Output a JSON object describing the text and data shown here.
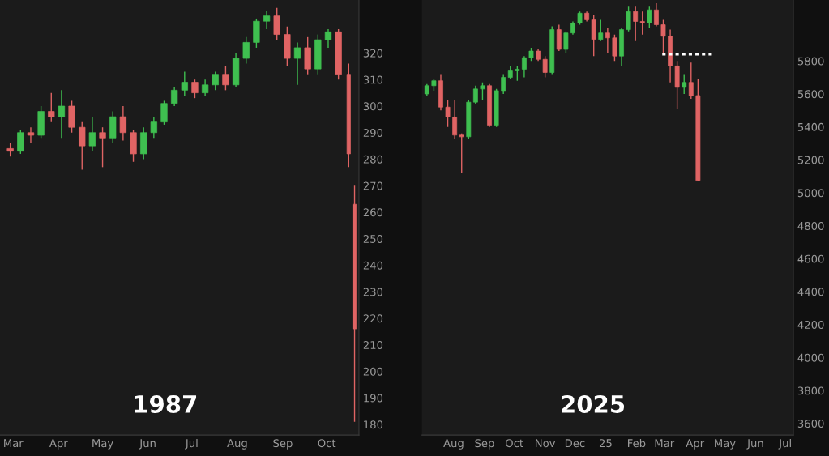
{
  "chart_data": [
    {
      "type": "candlestick",
      "x": [
        "1987-02-27",
        "1987-03-06",
        "1987-03-13",
        "1987-03-20",
        "1987-03-27",
        "1987-04-03",
        "1987-04-10",
        "1987-04-17",
        "1987-04-24",
        "1987-05-01",
        "1987-05-08",
        "1987-05-15",
        "1987-05-22",
        "1987-05-29",
        "1987-06-05",
        "1987-06-12",
        "1987-06-19",
        "1987-06-26",
        "1987-07-03",
        "1987-07-10",
        "1987-07-17",
        "1987-07-24",
        "1987-07-31",
        "1987-08-07",
        "1987-08-14",
        "1987-08-21",
        "1987-08-28",
        "1987-09-04",
        "1987-09-11",
        "1987-09-18",
        "1987-09-25",
        "1987-10-02",
        "1987-10-09",
        "1987-10-16",
        "1987-10-20"
      ],
      "ohlc": [
        [
          284,
          286,
          281,
          283
        ],
        [
          283,
          291,
          282,
          290
        ],
        [
          290,
          292,
          286,
          289
        ],
        [
          289,
          300,
          288,
          298
        ],
        [
          298,
          305,
          294,
          296
        ],
        [
          296,
          306,
          288,
          300
        ],
        [
          300,
          302,
          290,
          292
        ],
        [
          292,
          294,
          276,
          285
        ],
        [
          285,
          296,
          283,
          290
        ],
        [
          290,
          292,
          277,
          288
        ],
        [
          288,
          298,
          286,
          296
        ],
        [
          296,
          300,
          287,
          290
        ],
        [
          290,
          291,
          279,
          282
        ],
        [
          282,
          292,
          280,
          290
        ],
        [
          290,
          296,
          288,
          294
        ],
        [
          294,
          302,
          293,
          301
        ],
        [
          301,
          307,
          300,
          306
        ],
        [
          306,
          313,
          304,
          309
        ],
        [
          309,
          310,
          303,
          305
        ],
        [
          305,
          310,
          304,
          308
        ],
        [
          308,
          313,
          306,
          312
        ],
        [
          312,
          315,
          306,
          308
        ],
        [
          308,
          320,
          307,
          318
        ],
        [
          318,
          326,
          316,
          324
        ],
        [
          324,
          333,
          322,
          332
        ],
        [
          332,
          336,
          329,
          334
        ],
        [
          334,
          337,
          325,
          327
        ],
        [
          327,
          330,
          315,
          318
        ],
        [
          318,
          324,
          308,
          322
        ],
        [
          322,
          326,
          312,
          314
        ],
        [
          314,
          327,
          312,
          325
        ],
        [
          325,
          329,
          322,
          328
        ],
        [
          328,
          329,
          310,
          312
        ],
        [
          312,
          316,
          277,
          282
        ],
        [
          263,
          270,
          181,
          216
        ]
      ],
      "colors": [
        "#e06464",
        "#3fbf50",
        "#e06464",
        "#3fbf50",
        "#e06464",
        "#3fbf50",
        "#e06464",
        "#e06464",
        "#3fbf50",
        "#e06464",
        "#3fbf50",
        "#e06464",
        "#e06464",
        "#3fbf50",
        "#3fbf50",
        "#3fbf50",
        "#3fbf50",
        "#3fbf50",
        "#e06464",
        "#3fbf50",
        "#3fbf50",
        "#e06464",
        "#3fbf50",
        "#3fbf50",
        "#3fbf50",
        "#3fbf50",
        "#e06464",
        "#e06464",
        "#3fbf50",
        "#e06464",
        "#3fbf50",
        "#3fbf50",
        "#e06464",
        "#e06464",
        "#e06464"
      ],
      "xlim": [
        "1987-02-20",
        "1987-10-23"
      ],
      "xticks": [
        {
          "value": "1987-03-01",
          "label": "Mar"
        },
        {
          "value": "1987-04-01",
          "label": "Apr"
        },
        {
          "value": "1987-05-01",
          "label": "May"
        },
        {
          "value": "1987-06-01",
          "label": "Jun"
        },
        {
          "value": "1987-07-01",
          "label": "Jul"
        },
        {
          "value": "1987-08-01",
          "label": "Aug"
        },
        {
          "value": "1987-09-01",
          "label": "Sep"
        },
        {
          "value": "1987-10-01",
          "label": "Oct"
        }
      ],
      "ylim": [
        176,
        340
      ],
      "yticks": [
        180,
        190,
        200,
        210,
        220,
        230,
        240,
        250,
        260,
        270,
        280,
        290,
        300,
        310,
        320
      ],
      "grid": false,
      "annotations": [
        "1987"
      ]
    },
    {
      "type": "candlestick",
      "x": [
        "2024-07-05",
        "2024-07-12",
        "2024-07-19",
        "2024-07-26",
        "2024-08-02",
        "2024-08-09",
        "2024-08-16",
        "2024-08-23",
        "2024-08-30",
        "2024-09-06",
        "2024-09-13",
        "2024-09-20",
        "2024-09-27",
        "2024-10-04",
        "2024-10-11",
        "2024-10-18",
        "2024-10-25",
        "2024-11-01",
        "2024-11-08",
        "2024-11-15",
        "2024-11-22",
        "2024-11-29",
        "2024-12-06",
        "2024-12-13",
        "2024-12-20",
        "2024-12-27",
        "2025-01-03",
        "2025-01-10",
        "2025-01-17",
        "2025-01-24",
        "2025-01-31",
        "2025-02-07",
        "2025-02-14",
        "2025-02-21",
        "2025-02-28",
        "2025-03-07",
        "2025-03-14",
        "2025-03-21",
        "2025-03-28",
        "2025-04-04"
      ],
      "ohlc": [
        [
          5600,
          5660,
          5590,
          5650
        ],
        [
          5650,
          5690,
          5620,
          5680
        ],
        [
          5680,
          5720,
          5500,
          5520
        ],
        [
          5520,
          5560,
          5400,
          5460
        ],
        [
          5460,
          5560,
          5330,
          5350
        ],
        [
          5350,
          5360,
          5120,
          5340
        ],
        [
          5340,
          5560,
          5330,
          5550
        ],
        [
          5550,
          5650,
          5540,
          5630
        ],
        [
          5630,
          5670,
          5560,
          5650
        ],
        [
          5650,
          5660,
          5400,
          5410
        ],
        [
          5410,
          5630,
          5400,
          5620
        ],
        [
          5620,
          5720,
          5600,
          5700
        ],
        [
          5700,
          5770,
          5690,
          5740
        ],
        [
          5740,
          5770,
          5680,
          5750
        ],
        [
          5750,
          5830,
          5700,
          5820
        ],
        [
          5820,
          5880,
          5800,
          5860
        ],
        [
          5860,
          5870,
          5800,
          5810
        ],
        [
          5810,
          5830,
          5700,
          5730
        ],
        [
          5730,
          6010,
          5720,
          5990
        ],
        [
          5990,
          6020,
          5860,
          5870
        ],
        [
          5870,
          5980,
          5850,
          5970
        ],
        [
          5970,
          6040,
          5960,
          6030
        ],
        [
          6030,
          6100,
          6020,
          6090
        ],
        [
          6090,
          6100,
          6040,
          6050
        ],
        [
          6050,
          6080,
          5830,
          5930
        ],
        [
          5930,
          6050,
          5920,
          5970
        ],
        [
          5970,
          6000,
          5850,
          5940
        ],
        [
          5940,
          5960,
          5800,
          5830
        ],
        [
          5830,
          6000,
          5770,
          5990
        ],
        [
          5990,
          6130,
          5980,
          6100
        ],
        [
          6100,
          6130,
          5920,
          6040
        ],
        [
          6040,
          6100,
          5960,
          6030
        ],
        [
          6030,
          6130,
          6000,
          6110
        ],
        [
          6110,
          6150,
          6010,
          6020
        ],
        [
          6020,
          6050,
          5840,
          5950
        ],
        [
          5950,
          5990,
          5670,
          5770
        ],
        [
          5770,
          5800,
          5510,
          5640
        ],
        [
          5640,
          5720,
          5600,
          5670
        ],
        [
          5670,
          5790,
          5570,
          5590
        ],
        [
          5590,
          5690,
          5070,
          5075
        ]
      ],
      "colors": [
        "#3fbf50",
        "#3fbf50",
        "#e06464",
        "#e06464",
        "#e06464",
        "#e06464",
        "#3fbf50",
        "#3fbf50",
        "#3fbf50",
        "#e06464",
        "#3fbf50",
        "#3fbf50",
        "#3fbf50",
        "#3fbf50",
        "#3fbf50",
        "#3fbf50",
        "#e06464",
        "#e06464",
        "#3fbf50",
        "#e06464",
        "#3fbf50",
        "#3fbf50",
        "#3fbf50",
        "#e06464",
        "#e06464",
        "#3fbf50",
        "#e06464",
        "#e06464",
        "#3fbf50",
        "#3fbf50",
        "#e06464",
        "#e06464",
        "#3fbf50",
        "#e06464",
        "#e06464",
        "#e06464",
        "#e06464",
        "#3fbf50",
        "#e06464",
        "#e06464"
      ],
      "series": [
        {
          "type": "line",
          "x": [
            "2025-02-27",
            "2025-04-18"
          ],
          "values": [
            5840,
            5840
          ],
          "color": "#ffffff",
          "line_style": "dashed"
        }
      ],
      "xlim": [
        "2024-06-30",
        "2025-07-09"
      ],
      "xticks": [
        {
          "value": "2024-08-01",
          "label": "Aug"
        },
        {
          "value": "2024-09-01",
          "label": "Sep"
        },
        {
          "value": "2024-10-01",
          "label": "Oct"
        },
        {
          "value": "2024-11-01",
          "label": "Nov"
        },
        {
          "value": "2024-12-01",
          "label": "Dec"
        },
        {
          "value": "2025-01-01",
          "label": "25"
        },
        {
          "value": "2025-02-01",
          "label": "Feb"
        },
        {
          "value": "2025-03-01",
          "label": "Mar"
        },
        {
          "value": "2025-04-01",
          "label": "Apr"
        },
        {
          "value": "2025-05-01",
          "label": "May"
        },
        {
          "value": "2025-06-01",
          "label": "Jun"
        },
        {
          "value": "2025-07-01",
          "label": "Jul"
        }
      ],
      "ylim": [
        3530,
        6170
      ],
      "yticks": [
        3600,
        3800,
        4000,
        4200,
        4400,
        4600,
        4800,
        5000,
        5200,
        5400,
        5600,
        5800
      ],
      "grid": false,
      "annotations": [
        "2025"
      ]
    }
  ]
}
